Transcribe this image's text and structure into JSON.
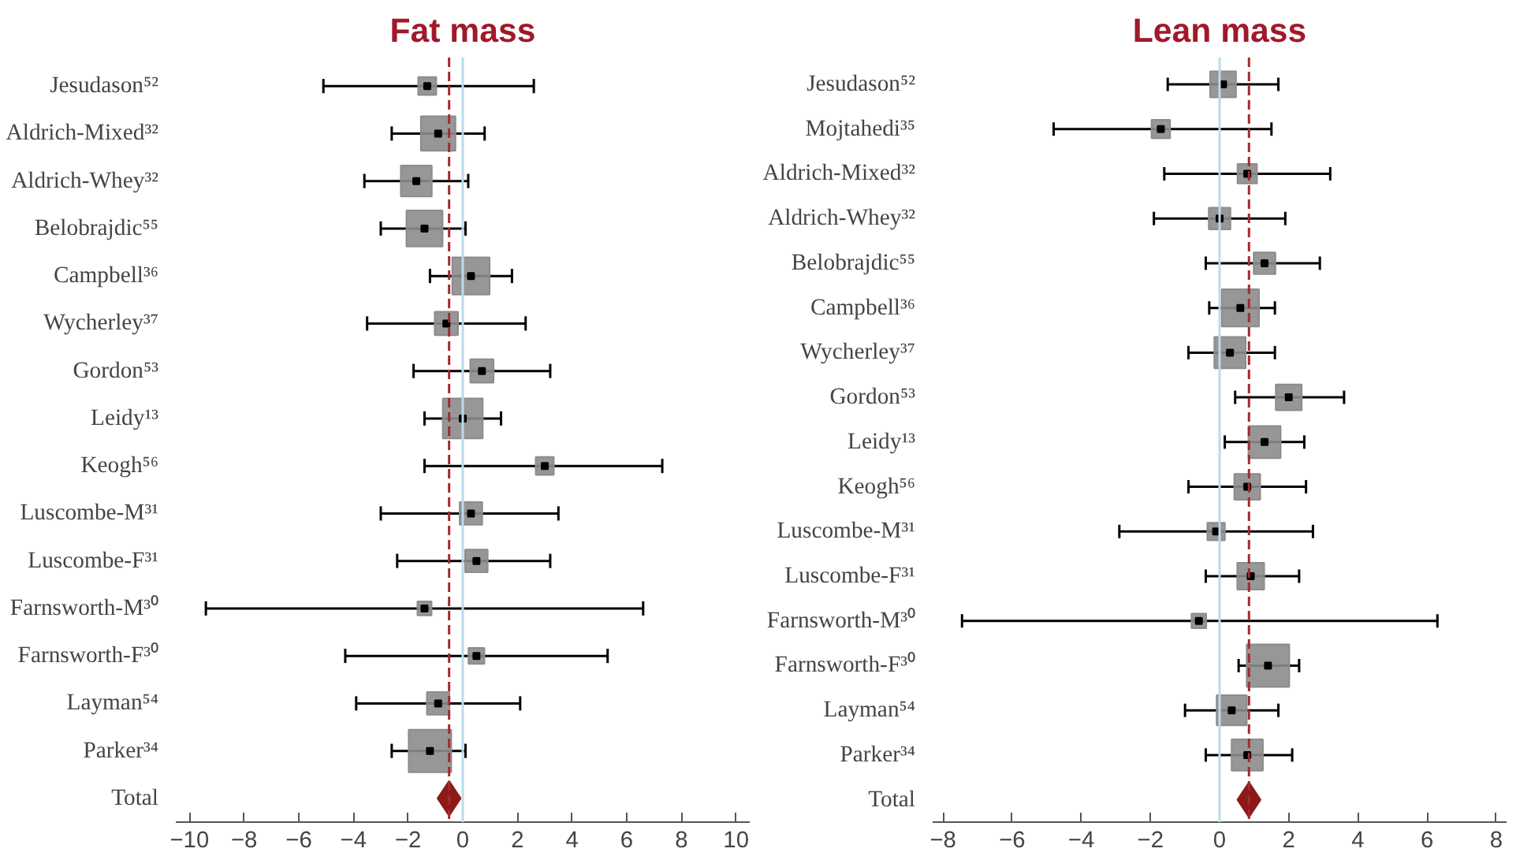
{
  "chart_data": [
    {
      "type": "bubble",
      "title": "Fat mass",
      "orientation": "horizontal",
      "categories": [
        "Jesudason⁵²",
        "Aldrich-Mixed³²",
        "Aldrich-Whey³²",
        "Belobrajdic⁵⁵",
        "Campbell³⁶",
        "Wycherley³⁷",
        "Gordon⁵³",
        "Leidy¹³",
        "Keogh⁵⁶",
        "Luscombe-M³¹",
        "Luscombe-F³¹",
        "Farnsworth-M³⁰",
        "Farnsworth-F³⁰",
        "Layman⁵⁴",
        "Parker³⁴",
        "Total"
      ],
      "series": [
        {
          "color": "#8c8c8c",
          "marker": "square",
          "values": [
            -1.3,
            -0.9,
            -1.7,
            -1.4,
            0.3,
            -0.6,
            0.7,
            0.0,
            3.0,
            0.3,
            0.5,
            -1.4,
            0.5,
            -0.9,
            -1.2,
            null
          ],
          "errors": [
            [
              -5.1,
              2.6
            ],
            [
              -2.6,
              0.8
            ],
            [
              -3.6,
              0.2
            ],
            [
              -3.0,
              0.1
            ],
            [
              -1.2,
              1.8
            ],
            [
              -3.5,
              2.3
            ],
            [
              -1.8,
              3.2
            ],
            [
              -1.4,
              1.4
            ],
            [
              -1.4,
              7.3
            ],
            [
              -3.0,
              3.5
            ],
            [
              -2.4,
              3.2
            ],
            [
              -9.4,
              6.6
            ],
            [
              -4.3,
              5.3
            ],
            [
              -3.9,
              2.1
            ],
            [
              -2.6,
              0.1
            ],
            null
          ],
          "sizes": [
            0.18,
            0.66,
            0.53,
            0.72,
            0.77,
            0.3,
            0.3,
            0.88,
            0.18,
            0.28,
            0.28,
            0.11,
            0.14,
            0.28,
            1,
            null
          ]
        },
        {
          "type": "scatter",
          "color": "#8b1a1a",
          "marker": "diamond",
          "values": [
            null,
            null,
            null,
            null,
            null,
            null,
            null,
            null,
            null,
            null,
            null,
            null,
            null,
            null,
            null,
            -0.5
          ]
        }
      ],
      "xlim": [
        -10.5,
        10.5
      ],
      "xticks": [
        -10,
        -8,
        -6,
        -4,
        -2,
        0,
        2,
        4,
        6,
        8,
        10
      ],
      "ref_lines": [
        {
          "axis": "x",
          "value": 0,
          "color": "#b9dceb",
          "line_style": "solid"
        },
        {
          "axis": "x",
          "value": -0.5,
          "color": "#a52a2a",
          "line_style": "dashed"
        }
      ],
      "grid": false
    },
    {
      "type": "bubble",
      "title": "Lean mass",
      "orientation": "horizontal",
      "categories": [
        "Jesudason⁵²",
        "Mojtahedi³⁵",
        "Aldrich-Mixed³²",
        "Aldrich-Whey³²",
        "Belobrajdic⁵⁵",
        "Campbell³⁶",
        "Wycherley³⁷",
        "Gordon⁵³",
        "Leidy¹³",
        "Keogh⁵⁶",
        "Luscombe-M³¹",
        "Luscombe-F³¹",
        "Farnsworth-M³⁰",
        "Farnsworth-F³⁰",
        "Layman⁵⁴",
        "Parker³⁴",
        "Total"
      ],
      "series": [
        {
          "color": "#8c8c8c",
          "marker": "square",
          "values": [
            0.1,
            -1.7,
            0.8,
            0.0,
            1.3,
            0.6,
            0.3,
            2.0,
            1.3,
            0.8,
            -0.1,
            0.9,
            -0.6,
            1.4,
            0.35,
            0.8,
            null
          ],
          "errors": [
            [
              -1.5,
              1.7
            ],
            [
              -4.8,
              1.5
            ],
            [
              -1.6,
              3.2
            ],
            [
              -1.9,
              1.9
            ],
            [
              -0.4,
              2.9
            ],
            [
              -0.3,
              1.6
            ],
            [
              -0.9,
              1.6
            ],
            [
              0.45,
              3.6
            ],
            [
              0.15,
              2.45
            ],
            [
              -0.9,
              2.5
            ],
            [
              -2.9,
              2.7
            ],
            [
              -0.4,
              2.3
            ],
            [
              -7.45,
              6.3
            ],
            [
              0.55,
              2.3
            ],
            [
              -1.0,
              1.7
            ],
            [
              -0.4,
              2.1
            ],
            null
          ],
          "sizes": [
            0.37,
            0.19,
            0.21,
            0.26,
            0.26,
            0.77,
            0.54,
            0.37,
            0.57,
            0.37,
            0.17,
            0.4,
            0.12,
            1,
            0.5,
            0.54,
            null
          ]
        },
        {
          "type": "scatter",
          "color": "#8b1a1a",
          "marker": "diamond",
          "values": [
            null,
            null,
            null,
            null,
            null,
            null,
            null,
            null,
            null,
            null,
            null,
            null,
            null,
            null,
            null,
            null,
            0.85
          ]
        }
      ],
      "xlim": [
        -8.3,
        8.3
      ],
      "xticks": [
        -8,
        -6,
        -4,
        -2,
        0,
        2,
        4,
        6,
        8
      ],
      "ref_lines": [
        {
          "axis": "x",
          "value": 0,
          "color": "#b9dceb",
          "line_style": "solid"
        },
        {
          "axis": "x",
          "value": 0.85,
          "color": "#a52a2a",
          "line_style": "dashed"
        }
      ],
      "grid": false
    }
  ]
}
